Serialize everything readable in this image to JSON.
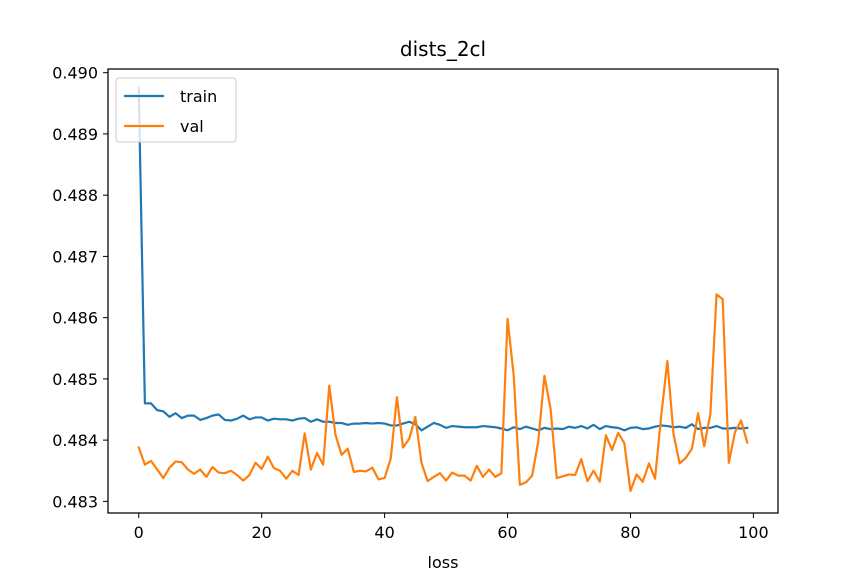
{
  "chart_data": {
    "type": "line",
    "title": "dists_2cl",
    "xlabel": "loss",
    "ylabel": "",
    "xlim": [
      -5,
      104
    ],
    "ylim": [
      0.48281,
      0.49006
    ],
    "xticks": [
      0,
      20,
      40,
      60,
      80,
      100
    ],
    "xtick_labels": [
      "0",
      "20",
      "40",
      "60",
      "80",
      "100"
    ],
    "yticks": [
      0.483,
      0.484,
      0.485,
      0.486,
      0.487,
      0.488,
      0.489,
      0.49
    ],
    "ytick_labels": [
      "0.483",
      "0.484",
      "0.485",
      "0.486",
      "0.487",
      "0.488",
      "0.489",
      "0.490"
    ],
    "grid": false,
    "legend_position": "upper-left",
    "x": [
      0,
      1,
      2,
      3,
      4,
      5,
      6,
      7,
      8,
      9,
      10,
      11,
      12,
      13,
      14,
      15,
      16,
      17,
      18,
      19,
      20,
      21,
      22,
      23,
      24,
      25,
      26,
      27,
      28,
      29,
      30,
      31,
      32,
      33,
      34,
      35,
      36,
      37,
      38,
      39,
      40,
      41,
      42,
      43,
      44,
      45,
      46,
      47,
      48,
      49,
      50,
      51,
      52,
      53,
      54,
      55,
      56,
      57,
      58,
      59,
      60,
      61,
      62,
      63,
      64,
      65,
      66,
      67,
      68,
      69,
      70,
      71,
      72,
      73,
      74,
      75,
      76,
      77,
      78,
      79,
      80,
      81,
      82,
      83,
      84,
      85,
      86,
      87,
      88,
      89,
      90,
      91,
      92,
      93,
      94,
      95,
      96,
      97,
      98,
      99
    ],
    "series": [
      {
        "name": "train",
        "color": "#1f77b4",
        "values": [
          0.48975,
          0.4846,
          0.4846,
          0.48449,
          0.48447,
          0.48438,
          0.48444,
          0.48436,
          0.4844,
          0.4844,
          0.48433,
          0.48436,
          0.4844,
          0.48442,
          0.48433,
          0.48432,
          0.48435,
          0.4844,
          0.48434,
          0.48437,
          0.48437,
          0.48432,
          0.48435,
          0.48434,
          0.48434,
          0.48432,
          0.48435,
          0.48436,
          0.4843,
          0.48434,
          0.4843,
          0.4843,
          0.48428,
          0.48428,
          0.48425,
          0.48427,
          0.48427,
          0.48428,
          0.48427,
          0.48428,
          0.48427,
          0.48424,
          0.48424,
          0.48427,
          0.4843,
          0.48426,
          0.48416,
          0.48422,
          0.48428,
          0.48425,
          0.4842,
          0.48423,
          0.48422,
          0.48421,
          0.48421,
          0.48421,
          0.48423,
          0.48422,
          0.48421,
          0.48419,
          0.48416,
          0.48421,
          0.48418,
          0.48422,
          0.48419,
          0.48416,
          0.4842,
          0.48418,
          0.48419,
          0.48418,
          0.48422,
          0.4842,
          0.48423,
          0.48419,
          0.48425,
          0.48418,
          0.48423,
          0.48421,
          0.4842,
          0.48416,
          0.4842,
          0.48421,
          0.48418,
          0.48419,
          0.48422,
          0.48424,
          0.48423,
          0.48421,
          0.48422,
          0.4842,
          0.48426,
          0.48418,
          0.4842,
          0.4842,
          0.48423,
          0.48419,
          0.48419,
          0.4842,
          0.48419,
          0.4842
        ]
      },
      {
        "name": "val",
        "color": "#ff7f0e",
        "values": [
          0.48388,
          0.4836,
          0.48366,
          0.48352,
          0.48338,
          0.48355,
          0.48365,
          0.48364,
          0.48352,
          0.48345,
          0.48352,
          0.4834,
          0.48356,
          0.48347,
          0.48346,
          0.4835,
          0.48343,
          0.48334,
          0.48343,
          0.48363,
          0.48353,
          0.48373,
          0.48354,
          0.4835,
          0.48337,
          0.4835,
          0.48343,
          0.48411,
          0.48352,
          0.48379,
          0.4836,
          0.48489,
          0.48409,
          0.48376,
          0.48386,
          0.48348,
          0.4835,
          0.48349,
          0.48355,
          0.48336,
          0.48338,
          0.4837,
          0.4847,
          0.48388,
          0.48402,
          0.48438,
          0.48363,
          0.48333,
          0.4834,
          0.48346,
          0.48334,
          0.48347,
          0.48342,
          0.48342,
          0.48334,
          0.48358,
          0.4834,
          0.48352,
          0.4834,
          0.48346,
          0.48598,
          0.48506,
          0.48327,
          0.48331,
          0.48342,
          0.48398,
          0.48505,
          0.48451,
          0.48338,
          0.48341,
          0.48344,
          0.48343,
          0.48369,
          0.48333,
          0.4835,
          0.48332,
          0.48408,
          0.48384,
          0.48412,
          0.48395,
          0.48317,
          0.48344,
          0.48332,
          0.48362,
          0.48337,
          0.4844,
          0.48529,
          0.4841,
          0.48362,
          0.48371,
          0.48386,
          0.48444,
          0.4839,
          0.48443,
          0.48638,
          0.4863,
          0.48363,
          0.48413,
          0.48432,
          0.48396
        ]
      }
    ]
  }
}
